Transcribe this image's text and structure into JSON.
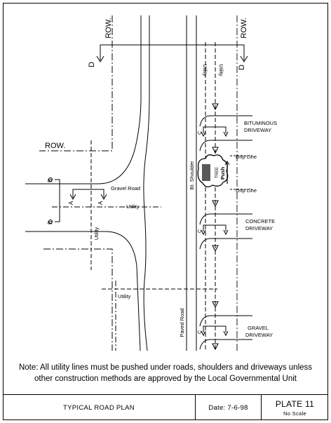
{
  "drawing": {
    "row_top_left": "ROW.",
    "row_top_right": "ROW.",
    "row_left": "ROW.",
    "section_marker": "D",
    "utility_label": "Utility",
    "gravel_road": "Gravel Road",
    "bt_shoulder": "Bt. Shoulder",
    "paved_road": "Paved Road",
    "tree": "TREE",
    "push": "Push",
    "drip_line": "Drip Line",
    "bituminous_driveway": [
      "BITUMINOUS",
      "DRIVEWAY"
    ],
    "concrete_driveway": [
      "CONCRETE",
      "DRIVEWAY"
    ],
    "gravel_driveway": [
      "GRAVEL",
      "DRIVEWAY"
    ],
    "section_b": "B",
    "section_a": "A",
    "section_c": "C"
  },
  "note": {
    "line1": "Note: All utility lines must be pushed under roads, shoulders and driveways unless",
    "line2": "other construction methods are approved by the Local Governmental Unit"
  },
  "title_block": {
    "title": "TYPICAL ROAD PLAN",
    "date": "Date: 7-6-98",
    "plate": "PLATE 11",
    "scale": "No Scale"
  }
}
